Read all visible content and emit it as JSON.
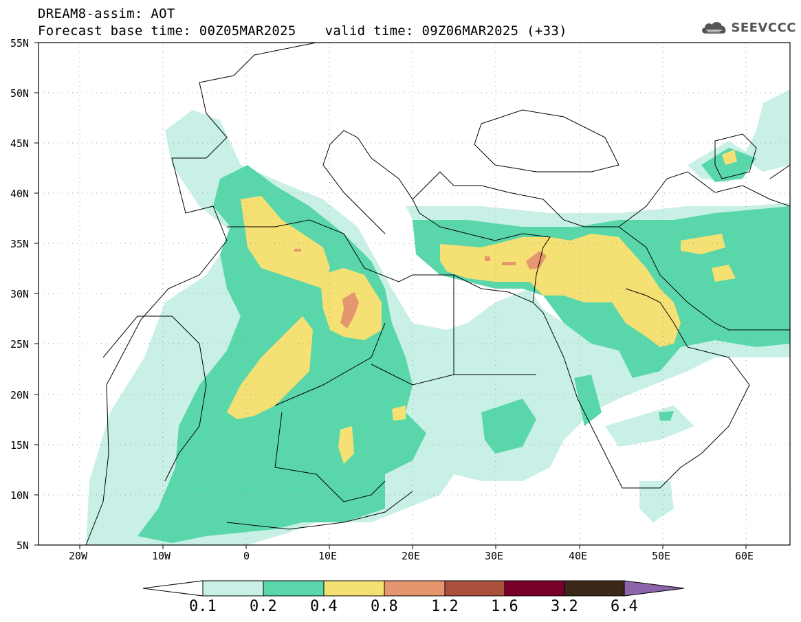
{
  "title_line1": "DREAM8-assim: AOT",
  "base_time": "Forecast base time: 00Z05MAR2025",
  "valid_time": "valid time: 09Z06MAR2025 (+33)",
  "logo_text": "SEEVCCC",
  "logo_icon": "cloud-icon",
  "lat_labels": [
    "55N",
    "50N",
    "45N",
    "40N",
    "35N",
    "30N",
    "25N",
    "20N",
    "15N",
    "10N",
    "5N"
  ],
  "lon_labels": [
    "20W",
    "10W",
    "0",
    "10E",
    "20E",
    "30E",
    "40E",
    "50E",
    "60E"
  ],
  "colorbar": {
    "labels": [
      "0.1",
      "0.2",
      "0.4",
      "0.8",
      "1.2",
      "1.6",
      "3.2",
      "6.4"
    ],
    "colors": [
      "#ffffff",
      "#c8f0e6",
      "#5ad7aa",
      "#f5e173",
      "#e6966e",
      "#aa503c",
      "#780028",
      "#3c2819",
      "#8c64aa"
    ]
  }
}
